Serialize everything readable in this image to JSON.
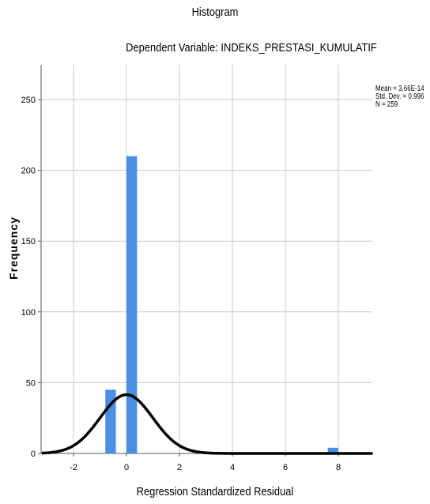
{
  "chart_data": {
    "type": "bar",
    "title": "Histogram",
    "subtitle": "Dependent Variable: INDEKS_PRESTASI_KUMULATIF",
    "xlabel": "Regression Standardized Residual",
    "ylabel": "Frequency",
    "stats": {
      "mean": "Mean = 3.66E-14",
      "std_dev": "Std. Dev. = 0.996",
      "n": "N = 259"
    },
    "bin_width": 0.4,
    "bins": [
      {
        "x_start": -0.8,
        "x_end": -0.4,
        "count": 45
      },
      {
        "x_start": 0.0,
        "x_end": 0.4,
        "count": 210
      },
      {
        "x_start": 7.6,
        "x_end": 8.0,
        "count": 4
      }
    ],
    "normal_curve": {
      "mean": 0.0,
      "sd": 0.996,
      "n": 259
    },
    "xlim": [
      -3.2,
      9.3
    ],
    "ylim": [
      0,
      275
    ],
    "x_ticks": [
      -2,
      0,
      2,
      4,
      6,
      8
    ],
    "x_tick_labels": [
      "-2",
      "0",
      "2",
      "4",
      "6",
      "8"
    ],
    "y_ticks": [
      0,
      50,
      100,
      150,
      200,
      250
    ],
    "y_tick_labels": [
      "0",
      "50",
      "100",
      "150",
      "200",
      "250"
    ],
    "grid": true,
    "colors": {
      "bar": "#4a90e2",
      "curve": "#000000",
      "grid": "#c8c8c8"
    }
  }
}
